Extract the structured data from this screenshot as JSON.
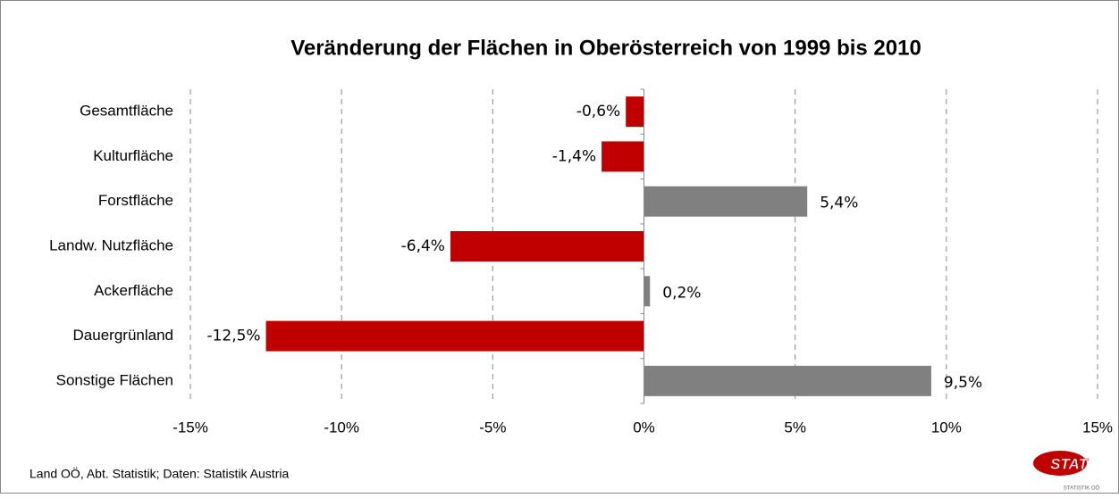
{
  "chart_data": {
    "type": "hbar",
    "title": "Veränderung der Flächen in Oberösterreich von 1999 bis 2010",
    "categories": [
      "Gesamtfläche",
      "Kulturfläche",
      "Forstfläche",
      "Landw. Nutzfläche",
      "Ackerfläche",
      "Dauergrünland",
      "Sonstige Flächen"
    ],
    "values": [
      -0.6,
      -1.4,
      5.4,
      -6.4,
      0.2,
      -12.5,
      9.5
    ],
    "value_labels": [
      "-0,6%",
      "-1,4%",
      "5,4%",
      "-6,4%",
      "0,2%",
      "-12,5%",
      "9,5%"
    ],
    "colors": {
      "negative": "#c00000",
      "positive": "#808080"
    },
    "xlim": [
      -15,
      15
    ],
    "xticks": [
      {
        "value": -15,
        "label": "-15%"
      },
      {
        "value": -10,
        "label": "-10%"
      },
      {
        "value": -5,
        "label": "-5%"
      },
      {
        "value": 0,
        "label": "0%"
      },
      {
        "value": 5,
        "label": "5%"
      },
      {
        "value": 10,
        "label": "10%"
      },
      {
        "value": 15,
        "label": "15%"
      }
    ],
    "grid": true,
    "source": "Land OÖ, Abt. Statistik; Daten: Statistik Austria",
    "logo": {
      "text": "STAT",
      "subtext": "STATISTIK OÖ"
    }
  }
}
